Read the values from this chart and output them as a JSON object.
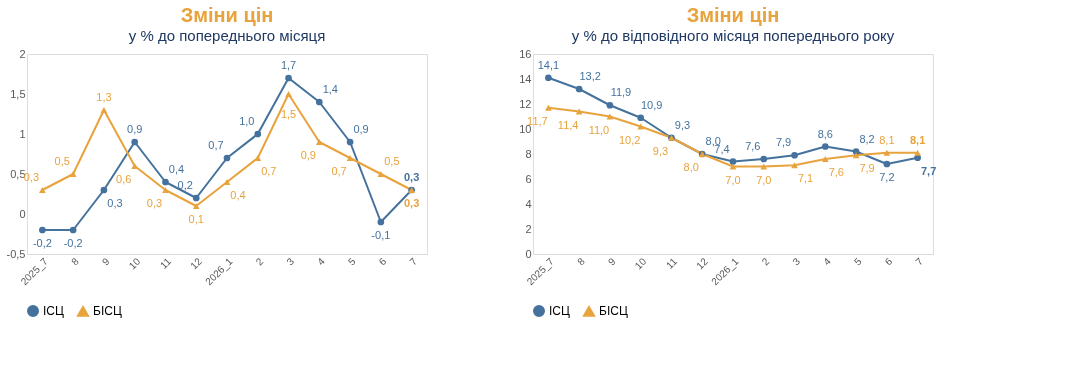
{
  "chart_data": [
    {
      "type": "line",
      "title": "Зміни цін",
      "subtitle": "у % до попереднього місяця",
      "categories": [
        "2025_7",
        "8",
        "9",
        "10",
        "11",
        "12",
        "2026_1",
        "2",
        "3",
        "4",
        "5",
        "6",
        "7"
      ],
      "series": [
        {
          "name": "ІСЦ",
          "color": "#44729d",
          "marker": "circle",
          "values": [
            -0.2,
            -0.2,
            0.3,
            0.9,
            0.4,
            0.2,
            0.7,
            1.0,
            1.7,
            1.4,
            0.9,
            -0.1,
            0.3
          ],
          "value_labels": [
            "-0,2",
            "-0,2",
            "0,3",
            "0,9",
            "0,4",
            "0,2",
            "0,7",
            "1,0",
            "1,7",
            "1,4",
            "0,9",
            "-0,1",
            "0,3"
          ]
        },
        {
          "name": "БІСЦ",
          "color": "#e8a33d",
          "marker": "triangle",
          "values": [
            0.3,
            0.5,
            1.3,
            0.6,
            0.3,
            0.1,
            0.4,
            0.7,
            1.5,
            0.9,
            0.7,
            0.5,
            0.3
          ],
          "value_labels": [
            "0,3",
            "0,5",
            "1,3",
            "0,6",
            "0,3",
            "0,1",
            "0,4",
            "0,7",
            "1,5",
            "0,9",
            "0,7",
            "0,5",
            "0,3"
          ]
        }
      ],
      "ylim": [
        -0.5,
        2
      ],
      "yticks": [
        {
          "value": -0.5,
          "label": "-0,5"
        },
        0,
        {
          "value": 0.5,
          "label": "0,5"
        },
        1,
        {
          "value": 1.5,
          "label": "1,5"
        },
        2
      ],
      "grid": false,
      "legend": "bottom",
      "line_style": "solid"
    },
    {
      "type": "line",
      "title": "Зміни цін",
      "subtitle": "у % до відповідного місяця попереднього року",
      "categories": [
        "2025_7",
        "8",
        "9",
        "10",
        "11",
        "12",
        "2026_1",
        "2",
        "3",
        "4",
        "5",
        "6",
        "7"
      ],
      "series": [
        {
          "name": "ІСЦ",
          "color": "#44729d",
          "marker": "circle",
          "values": [
            14.1,
            13.2,
            11.9,
            10.9,
            9.3,
            8.0,
            7.4,
            7.6,
            7.9,
            8.6,
            8.2,
            7.2,
            7.7
          ],
          "value_labels": [
            "14,1",
            "13,2",
            "11,9",
            "10,9",
            "9,3",
            "8,0",
            "7,4",
            "7,6",
            "7,9",
            "8,6",
            "8,2",
            "7,2",
            "7,7"
          ]
        },
        {
          "name": "БІСЦ",
          "color": "#e8a33d",
          "marker": "triangle",
          "values": [
            11.7,
            11.4,
            11.0,
            10.2,
            9.3,
            8.0,
            7.0,
            7.0,
            7.1,
            7.6,
            7.9,
            8.1,
            8.1
          ],
          "value_labels": [
            "11,7",
            "11,4",
            "11,0",
            "10,2",
            "9,3",
            "8,0",
            "7,0",
            "7,0",
            "7,1",
            "7,6",
            "7,9",
            "8,1",
            "8,1"
          ]
        }
      ],
      "ylim": [
        0,
        16
      ],
      "yticks": [
        0,
        2,
        4,
        6,
        8,
        10,
        12,
        14,
        16
      ],
      "grid": false,
      "legend": "bottom",
      "line_style": "solid"
    }
  ]
}
